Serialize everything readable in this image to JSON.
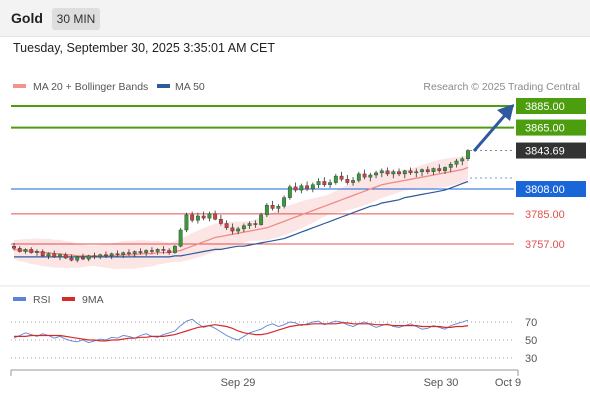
{
  "header": {
    "instrument": "Gold",
    "timeframe": "30 MIN",
    "timestamp": "Tuesday, September 30, 2025 3:35:01 AM CET"
  },
  "legend": {
    "items": [
      {
        "label": "MA 20 + Bollinger Bands",
        "color": "#f4938e"
      },
      {
        "label": "MA 50",
        "color": "#2f5a9e"
      }
    ],
    "source": "Research © 2025 Trading Central"
  },
  "levels": [
    {
      "label": "3885.00",
      "value": 3885.0,
      "kind": "target",
      "color": "#4d9e0f"
    },
    {
      "label": "3865.00",
      "value": 3865.0,
      "kind": "target",
      "color": "#4d9e0f"
    },
    {
      "label": "3843.69",
      "value": 3843.69,
      "kind": "last",
      "color": "#333333"
    },
    {
      "label": "3808.00",
      "value": 3808.0,
      "kind": "pivot",
      "color": "#1a66d9"
    },
    {
      "label": "3785.00",
      "value": 3785.0,
      "kind": "support",
      "color": "#e05050"
    },
    {
      "label": "3757.00",
      "value": 3757.0,
      "kind": "support",
      "color": "#e05050"
    }
  ],
  "rsi_panel": {
    "legend": [
      {
        "label": "RSI",
        "color": "#5b84d6"
      },
      {
        "label": "9MA",
        "color": "#d62b2b"
      }
    ],
    "ticks": [
      "70",
      "50",
      "30"
    ]
  },
  "x_axis": {
    "labels": [
      "Sep 29",
      "Sep 30",
      "Oct 9"
    ]
  },
  "chart_data": [
    {
      "type": "candlestick",
      "ylim": [
        3736,
        3890
      ],
      "levels": [
        3885.0,
        3865.0,
        3843.69,
        3808.0,
        3785.0,
        3757.0
      ],
      "ohlc": [
        [
          3755,
          3758,
          3751,
          3753
        ],
        [
          3753,
          3755,
          3749,
          3750
        ],
        [
          3750,
          3753,
          3748,
          3752
        ],
        [
          3752,
          3754,
          3748,
          3749
        ],
        [
          3749,
          3752,
          3746,
          3750
        ],
        [
          3750,
          3752,
          3745,
          3746
        ],
        [
          3746,
          3749,
          3743,
          3748
        ],
        [
          3748,
          3751,
          3744,
          3745
        ],
        [
          3745,
          3748,
          3742,
          3747
        ],
        [
          3747,
          3749,
          3743,
          3744
        ],
        [
          3744,
          3747,
          3741,
          3742
        ],
        [
          3742,
          3746,
          3740,
          3745
        ],
        [
          3745,
          3748,
          3742,
          3743
        ],
        [
          3743,
          3747,
          3741,
          3746
        ],
        [
          3746,
          3749,
          3743,
          3745
        ],
        [
          3745,
          3748,
          3743,
          3747
        ],
        [
          3747,
          3750,
          3744,
          3746
        ],
        [
          3746,
          3749,
          3743,
          3748
        ],
        [
          3748,
          3751,
          3745,
          3747
        ],
        [
          3747,
          3750,
          3744,
          3749
        ],
        [
          3749,
          3752,
          3746,
          3748
        ],
        [
          3748,
          3751,
          3745,
          3750
        ],
        [
          3750,
          3753,
          3747,
          3749
        ],
        [
          3749,
          3752,
          3746,
          3751
        ],
        [
          3751,
          3754,
          3748,
          3750
        ],
        [
          3750,
          3753,
          3747,
          3752
        ],
        [
          3752,
          3755,
          3748,
          3751
        ],
        [
          3751,
          3753,
          3747,
          3749
        ],
        [
          3749,
          3756,
          3748,
          3755
        ],
        [
          3755,
          3772,
          3754,
          3770
        ],
        [
          3770,
          3786,
          3768,
          3784
        ],
        [
          3784,
          3787,
          3777,
          3779
        ],
        [
          3779,
          3786,
          3776,
          3783
        ],
        [
          3783,
          3787,
          3779,
          3781
        ],
        [
          3781,
          3787,
          3778,
          3785
        ],
        [
          3785,
          3788,
          3779,
          3780
        ],
        [
          3780,
          3784,
          3774,
          3776
        ],
        [
          3776,
          3779,
          3770,
          3772
        ],
        [
          3772,
          3776,
          3766,
          3769
        ],
        [
          3769,
          3773,
          3766,
          3771
        ],
        [
          3771,
          3776,
          3768,
          3774
        ],
        [
          3774,
          3778,
          3771,
          3776
        ],
        [
          3776,
          3779,
          3772,
          3775
        ],
        [
          3775,
          3786,
          3774,
          3784
        ],
        [
          3784,
          3795,
          3782,
          3793
        ],
        [
          3793,
          3797,
          3788,
          3790
        ],
        [
          3790,
          3794,
          3786,
          3792
        ],
        [
          3792,
          3802,
          3790,
          3800
        ],
        [
          3800,
          3812,
          3798,
          3810
        ],
        [
          3810,
          3814,
          3805,
          3807
        ],
        [
          3807,
          3813,
          3804,
          3811
        ],
        [
          3811,
          3815,
          3806,
          3808
        ],
        [
          3808,
          3814,
          3805,
          3812
        ],
        [
          3812,
          3818,
          3809,
          3815
        ],
        [
          3815,
          3819,
          3810,
          3812
        ],
        [
          3812,
          3817,
          3809,
          3814
        ],
        [
          3814,
          3822,
          3812,
          3820
        ],
        [
          3820,
          3824,
          3815,
          3817
        ],
        [
          3817,
          3821,
          3812,
          3814
        ],
        [
          3814,
          3819,
          3811,
          3816
        ],
        [
          3816,
          3824,
          3814,
          3822
        ],
        [
          3822,
          3826,
          3817,
          3819
        ],
        [
          3819,
          3823,
          3815,
          3821
        ],
        [
          3821,
          3825,
          3818,
          3823
        ],
        [
          3823,
          3827,
          3819,
          3825
        ],
        [
          3825,
          3828,
          3820,
          3822
        ],
        [
          3822,
          3826,
          3818,
          3824
        ],
        [
          3824,
          3827,
          3820,
          3822
        ],
        [
          3822,
          3826,
          3818,
          3825
        ],
        [
          3825,
          3828,
          3821,
          3823
        ],
        [
          3823,
          3827,
          3819,
          3824
        ],
        [
          3824,
          3827,
          3820,
          3826
        ],
        [
          3826,
          3829,
          3822,
          3824
        ],
        [
          3824,
          3828,
          3821,
          3827
        ],
        [
          3827,
          3831,
          3823,
          3825
        ],
        [
          3825,
          3829,
          3822,
          3828
        ],
        [
          3828,
          3833,
          3824,
          3831
        ],
        [
          3831,
          3836,
          3828,
          3834
        ],
        [
          3834,
          3838,
          3830,
          3836
        ],
        [
          3836,
          3845,
          3834,
          3843.69
        ]
      ],
      "ma20": [
        3752,
        3751,
        3751,
        3750,
        3750,
        3749,
        3749,
        3748,
        3748,
        3747,
        3747,
        3746,
        3746,
        3746,
        3746,
        3746,
        3746,
        3746,
        3746,
        3747,
        3747,
        3747,
        3748,
        3748,
        3748,
        3749,
        3749,
        3749,
        3750,
        3751,
        3753,
        3755,
        3757,
        3759,
        3761,
        3763,
        3764,
        3765,
        3766,
        3767,
        3768,
        3769,
        3770,
        3771,
        3772,
        3774,
        3776,
        3778,
        3780,
        3782,
        3784,
        3786,
        3788,
        3790,
        3792,
        3794,
        3796,
        3798,
        3800,
        3802,
        3804,
        3806,
        3808,
        3810,
        3812,
        3813,
        3814,
        3815,
        3816,
        3817,
        3818,
        3819,
        3820,
        3821,
        3822,
        3823,
        3824,
        3825,
        3826,
        3828
      ],
      "ma50": [
        3745,
        3745,
        3745,
        3745,
        3745,
        3745,
        3745,
        3745,
        3745,
        3745,
        3745,
        3745,
        3745,
        3745,
        3745,
        3745,
        3745,
        3745,
        3745,
        3745,
        3745,
        3745,
        3745,
        3745,
        3745,
        3745,
        3745,
        3745,
        3746,
        3746,
        3747,
        3748,
        3749,
        3750,
        3751,
        3752,
        3752,
        3753,
        3754,
        3755,
        3755,
        3756,
        3757,
        3758,
        3759,
        3760,
        3761,
        3762,
        3764,
        3766,
        3768,
        3770,
        3772,
        3774,
        3776,
        3778,
        3780,
        3782,
        3784,
        3786,
        3788,
        3790,
        3792,
        3793,
        3795,
        3796,
        3797,
        3798,
        3800,
        3801,
        3802,
        3803,
        3804,
        3805,
        3806,
        3807,
        3809,
        3811,
        3813,
        3815
      ]
    },
    {
      "type": "line",
      "name": "RSI",
      "ylim": [
        20,
        80
      ],
      "series": [
        {
          "name": "RSI",
          "values": [
            52,
            55,
            58,
            56,
            54,
            57,
            55,
            52,
            54,
            51,
            49,
            48,
            50,
            47,
            49,
            51,
            50,
            53,
            52,
            55,
            54,
            52,
            55,
            57,
            54,
            53,
            56,
            58,
            60,
            66,
            71,
            73,
            68,
            64,
            66,
            63,
            59,
            55,
            52,
            50,
            54,
            58,
            60,
            62,
            66,
            68,
            65,
            67,
            70,
            69,
            66,
            68,
            70,
            71,
            67,
            69,
            71,
            70,
            67,
            65,
            68,
            70,
            67,
            64,
            66,
            68,
            65,
            64,
            66,
            68,
            65,
            62,
            63,
            66,
            64,
            62,
            66,
            68,
            70,
            72
          ]
        },
        {
          "name": "9MA",
          "values": [
            54,
            54,
            54,
            55,
            55,
            55,
            55,
            55,
            55,
            54,
            53,
            52,
            51,
            50,
            50,
            49,
            49,
            50,
            50,
            51,
            52,
            52,
            53,
            53,
            54,
            54,
            54,
            55,
            56,
            58,
            60,
            62,
            64,
            65,
            66,
            67,
            66,
            65,
            63,
            60,
            58,
            57,
            56,
            56,
            57,
            59,
            61,
            63,
            65,
            66,
            67,
            67,
            68,
            68,
            68,
            68,
            68,
            69,
            69,
            68,
            68,
            68,
            68,
            67,
            67,
            67,
            66,
            66,
            66,
            66,
            66,
            65,
            65,
            65,
            65,
            64,
            64,
            65,
            65,
            66
          ]
        }
      ]
    }
  ]
}
